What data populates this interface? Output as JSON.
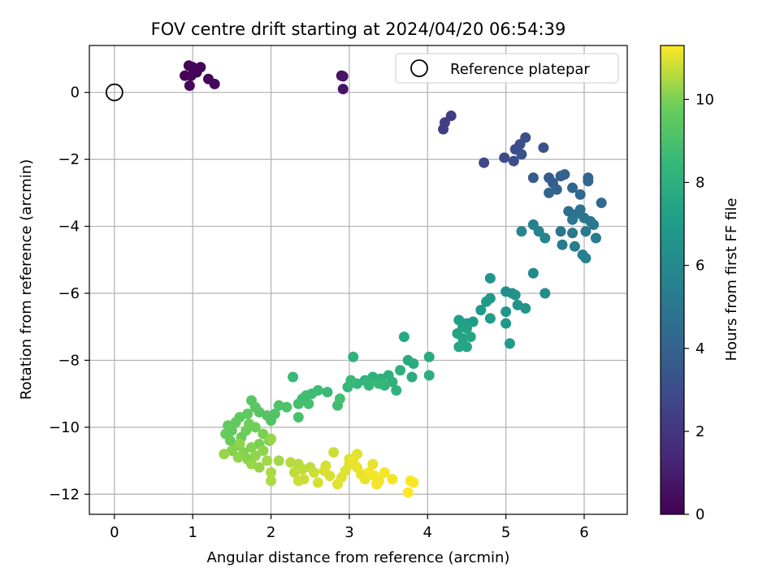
{
  "chart_data": {
    "type": "scatter",
    "title": "FOV centre drift starting at 2024/04/20 06:54:39",
    "xlabel": "Angular distance from reference (arcmin)",
    "ylabel": "Rotation from reference (arcmin)",
    "xlim": [
      -0.32,
      6.55
    ],
    "ylim": [
      -12.6,
      1.4
    ],
    "xticks": [
      0,
      1,
      2,
      3,
      4,
      5,
      6
    ],
    "yticks": [
      -12,
      -10,
      -8,
      -6,
      -4,
      -2,
      0
    ],
    "grid": true,
    "legend": {
      "entries": [
        "Reference platepar"
      ],
      "position": "top-right"
    },
    "reference_point": {
      "x": 0,
      "y": 0
    },
    "colorbar": {
      "label": "Hours from first FF file",
      "colormap": "viridis",
      "range": [
        0,
        11.3
      ],
      "ticks": [
        0,
        2,
        4,
        6,
        8,
        10
      ]
    },
    "series": [
      {
        "values": [
          {
            "x": 0.9,
            "y": 0.5,
            "c": 0.05
          },
          {
            "x": 0.95,
            "y": 0.8,
            "c": 0.05
          },
          {
            "x": 1.0,
            "y": 0.75,
            "c": 0.1
          },
          {
            "x": 1.05,
            "y": 0.6,
            "c": 0.1
          },
          {
            "x": 1.1,
            "y": 0.75,
            "c": 0.15
          },
          {
            "x": 0.98,
            "y": 0.5,
            "c": 0.15
          },
          {
            "x": 0.96,
            "y": 0.2,
            "c": 0.2
          },
          {
            "x": 1.2,
            "y": 0.4,
            "c": 0.2
          },
          {
            "x": 1.28,
            "y": 0.25,
            "c": 0.25
          },
          {
            "x": 2.9,
            "y": 0.5,
            "c": 0.6
          },
          {
            "x": 2.92,
            "y": 0.48,
            "c": 0.65
          },
          {
            "x": 2.92,
            "y": 0.1,
            "c": 0.7
          },
          {
            "x": 4.3,
            "y": -0.7,
            "c": 2.3
          },
          {
            "x": 4.22,
            "y": -0.9,
            "c": 2.35
          },
          {
            "x": 4.2,
            "y": -1.1,
            "c": 2.4
          },
          {
            "x": 4.72,
            "y": -2.1,
            "c": 2.8
          },
          {
            "x": 4.98,
            "y": -1.95,
            "c": 2.9
          },
          {
            "x": 5.1,
            "y": -2.05,
            "c": 3.0
          },
          {
            "x": 5.12,
            "y": -1.7,
            "c": 3.05
          },
          {
            "x": 5.18,
            "y": -1.55,
            "c": 3.1
          },
          {
            "x": 5.25,
            "y": -1.35,
            "c": 3.15
          },
          {
            "x": 5.48,
            "y": -1.65,
            "c": 3.2
          },
          {
            "x": 5.2,
            "y": -1.85,
            "c": 3.25
          },
          {
            "x": 5.35,
            "y": -2.55,
            "c": 3.6
          },
          {
            "x": 5.55,
            "y": -2.55,
            "c": 3.7
          },
          {
            "x": 5.6,
            "y": -2.7,
            "c": 3.8
          },
          {
            "x": 5.7,
            "y": -2.5,
            "c": 3.9
          },
          {
            "x": 5.75,
            "y": -2.45,
            "c": 4.0
          },
          {
            "x": 5.65,
            "y": -2.9,
            "c": 4.0
          },
          {
            "x": 5.55,
            "y": -3.0,
            "c": 4.1
          },
          {
            "x": 5.85,
            "y": -2.85,
            "c": 4.2
          },
          {
            "x": 5.95,
            "y": -3.05,
            "c": 4.3
          },
          {
            "x": 6.05,
            "y": -2.55,
            "c": 4.1
          },
          {
            "x": 6.05,
            "y": -2.65,
            "c": 4.2
          },
          {
            "x": 6.22,
            "y": -3.3,
            "c": 4.4
          },
          {
            "x": 5.8,
            "y": -3.55,
            "c": 4.6
          },
          {
            "x": 5.88,
            "y": -3.65,
            "c": 4.7
          },
          {
            "x": 5.95,
            "y": -3.5,
            "c": 4.8
          },
          {
            "x": 6.0,
            "y": -3.75,
            "c": 4.9
          },
          {
            "x": 6.08,
            "y": -3.85,
            "c": 5.0
          },
          {
            "x": 5.85,
            "y": -3.8,
            "c": 5.0
          },
          {
            "x": 5.7,
            "y": -4.15,
            "c": 5.0
          },
          {
            "x": 5.85,
            "y": -4.2,
            "c": 5.1
          },
          {
            "x": 6.02,
            "y": -4.15,
            "c": 5.2
          },
          {
            "x": 6.12,
            "y": -3.95,
            "c": 5.1
          },
          {
            "x": 6.15,
            "y": -4.35,
            "c": 5.3
          },
          {
            "x": 5.72,
            "y": -4.55,
            "c": 5.3
          },
          {
            "x": 5.88,
            "y": -4.6,
            "c": 5.4
          },
          {
            "x": 5.98,
            "y": -4.85,
            "c": 5.5
          },
          {
            "x": 6.02,
            "y": -4.95,
            "c": 5.6
          },
          {
            "x": 5.35,
            "y": -3.95,
            "c": 5.6
          },
          {
            "x": 5.42,
            "y": -4.15,
            "c": 5.7
          },
          {
            "x": 5.5,
            "y": -4.35,
            "c": 5.8
          },
          {
            "x": 5.2,
            "y": -4.15,
            "c": 5.9
          },
          {
            "x": 5.35,
            "y": -5.4,
            "c": 6.0
          },
          {
            "x": 5.5,
            "y": -6.0,
            "c": 6.2
          },
          {
            "x": 5.0,
            "y": -5.95,
            "c": 6.3
          },
          {
            "x": 5.08,
            "y": -6.0,
            "c": 6.3
          },
          {
            "x": 5.12,
            "y": -6.05,
            "c": 6.4
          },
          {
            "x": 5.15,
            "y": -6.35,
            "c": 6.5
          },
          {
            "x": 5.25,
            "y": -6.45,
            "c": 6.6
          },
          {
            "x": 5.0,
            "y": -6.55,
            "c": 6.6
          },
          {
            "x": 4.8,
            "y": -6.15,
            "c": 6.8
          },
          {
            "x": 4.75,
            "y": -6.25,
            "c": 6.9
          },
          {
            "x": 4.68,
            "y": -6.5,
            "c": 6.9
          },
          {
            "x": 4.8,
            "y": -6.75,
            "c": 7.0
          },
          {
            "x": 4.58,
            "y": -6.85,
            "c": 7.0
          },
          {
            "x": 4.5,
            "y": -6.9,
            "c": 7.1
          },
          {
            "x": 4.8,
            "y": -5.55,
            "c": 6.6
          },
          {
            "x": 5.0,
            "y": -6.9,
            "c": 6.7
          },
          {
            "x": 5.05,
            "y": -7.5,
            "c": 6.9
          },
          {
            "x": 4.4,
            "y": -6.8,
            "c": 7.2
          },
          {
            "x": 4.45,
            "y": -7.0,
            "c": 7.2
          },
          {
            "x": 4.5,
            "y": -7.05,
            "c": 7.3
          },
          {
            "x": 4.38,
            "y": -7.2,
            "c": 7.3
          },
          {
            "x": 4.45,
            "y": -7.35,
            "c": 7.4
          },
          {
            "x": 4.5,
            "y": -7.6,
            "c": 7.4
          },
          {
            "x": 4.4,
            "y": -7.6,
            "c": 7.5
          },
          {
            "x": 4.55,
            "y": -7.3,
            "c": 7.5
          },
          {
            "x": 3.7,
            "y": -7.3,
            "c": 7.6
          },
          {
            "x": 3.75,
            "y": -8.0,
            "c": 7.7
          },
          {
            "x": 3.82,
            "y": -8.1,
            "c": 7.8
          },
          {
            "x": 4.02,
            "y": -7.9,
            "c": 7.8
          },
          {
            "x": 4.02,
            "y": -8.45,
            "c": 7.9
          },
          {
            "x": 3.8,
            "y": -8.5,
            "c": 7.9
          },
          {
            "x": 3.65,
            "y": -8.3,
            "c": 8.0
          },
          {
            "x": 3.5,
            "y": -8.45,
            "c": 8.0
          },
          {
            "x": 3.4,
            "y": -8.55,
            "c": 8.1
          },
          {
            "x": 3.3,
            "y": -8.5,
            "c": 8.1
          },
          {
            "x": 3.55,
            "y": -8.65,
            "c": 8.2
          },
          {
            "x": 3.6,
            "y": -8.9,
            "c": 8.2
          },
          {
            "x": 3.45,
            "y": -8.75,
            "c": 8.3
          },
          {
            "x": 3.2,
            "y": -8.6,
            "c": 8.3
          },
          {
            "x": 3.1,
            "y": -8.7,
            "c": 8.4
          },
          {
            "x": 3.25,
            "y": -8.75,
            "c": 8.4
          },
          {
            "x": 3.38,
            "y": -8.7,
            "c": 8.5
          },
          {
            "x": 3.05,
            "y": -7.9,
            "c": 8.2
          },
          {
            "x": 2.98,
            "y": -8.8,
            "c": 8.5
          },
          {
            "x": 3.02,
            "y": -8.6,
            "c": 8.6
          },
          {
            "x": 2.72,
            "y": -8.95,
            "c": 8.6
          },
          {
            "x": 2.6,
            "y": -8.9,
            "c": 8.7
          },
          {
            "x": 2.52,
            "y": -9.0,
            "c": 8.7
          },
          {
            "x": 2.45,
            "y": -9.05,
            "c": 8.8
          },
          {
            "x": 2.4,
            "y": -9.15,
            "c": 8.8
          },
          {
            "x": 2.35,
            "y": -9.3,
            "c": 8.9
          },
          {
            "x": 2.48,
            "y": -9.3,
            "c": 8.9
          },
          {
            "x": 2.28,
            "y": -8.5,
            "c": 8.6
          },
          {
            "x": 2.85,
            "y": -9.35,
            "c": 8.8
          },
          {
            "x": 2.88,
            "y": -9.15,
            "c": 8.9
          },
          {
            "x": 2.35,
            "y": -9.7,
            "c": 9.0
          },
          {
            "x": 2.2,
            "y": -9.4,
            "c": 9.1
          },
          {
            "x": 2.1,
            "y": -9.35,
            "c": 9.1
          },
          {
            "x": 2.05,
            "y": -9.6,
            "c": 9.2
          },
          {
            "x": 2.0,
            "y": -9.8,
            "c": 9.2
          },
          {
            "x": 1.95,
            "y": -9.65,
            "c": 9.3
          },
          {
            "x": 1.85,
            "y": -9.55,
            "c": 9.3
          },
          {
            "x": 1.75,
            "y": -9.2,
            "c": 9.4
          },
          {
            "x": 1.8,
            "y": -9.4,
            "c": 9.4
          },
          {
            "x": 1.7,
            "y": -9.6,
            "c": 9.5
          },
          {
            "x": 1.6,
            "y": -9.7,
            "c": 9.5
          },
          {
            "x": 1.55,
            "y": -9.85,
            "c": 9.6
          },
          {
            "x": 1.45,
            "y": -9.95,
            "c": 9.6
          },
          {
            "x": 1.5,
            "y": -10.1,
            "c": 9.6
          },
          {
            "x": 1.42,
            "y": -10.2,
            "c": 9.7
          },
          {
            "x": 1.48,
            "y": -10.4,
            "c": 9.7
          },
          {
            "x": 1.55,
            "y": -10.55,
            "c": 9.8
          },
          {
            "x": 1.62,
            "y": -10.3,
            "c": 9.8
          },
          {
            "x": 1.68,
            "y": -10.1,
            "c": 9.8
          },
          {
            "x": 1.72,
            "y": -9.9,
            "c": 9.9
          },
          {
            "x": 1.8,
            "y": -10.0,
            "c": 9.9
          },
          {
            "x": 1.9,
            "y": -10.2,
            "c": 10.0
          },
          {
            "x": 1.98,
            "y": -10.4,
            "c": 10.0
          },
          {
            "x": 1.85,
            "y": -10.5,
            "c": 10.0
          },
          {
            "x": 1.75,
            "y": -10.6,
            "c": 10.1
          },
          {
            "x": 1.65,
            "y": -10.75,
            "c": 10.1
          },
          {
            "x": 1.7,
            "y": -10.95,
            "c": 10.1
          },
          {
            "x": 1.8,
            "y": -10.85,
            "c": 10.2
          },
          {
            "x": 1.9,
            "y": -10.7,
            "c": 10.2
          },
          {
            "x": 1.58,
            "y": -10.9,
            "c": 10.2
          },
          {
            "x": 1.4,
            "y": -10.8,
            "c": 10.3
          },
          {
            "x": 1.75,
            "y": -11.1,
            "c": 10.3
          },
          {
            "x": 1.85,
            "y": -11.2,
            "c": 10.3
          },
          {
            "x": 1.95,
            "y": -11.0,
            "c": 10.4
          },
          {
            "x": 2.1,
            "y": -11.0,
            "c": 10.4
          },
          {
            "x": 2.0,
            "y": -11.35,
            "c": 10.5
          },
          {
            "x": 2.0,
            "y": -11.6,
            "c": 10.5
          },
          {
            "x": 2.0,
            "y": -10.35,
            "c": 10.3
          },
          {
            "x": 1.6,
            "y": -10.5,
            "c": 10.2
          },
          {
            "x": 1.5,
            "y": -10.7,
            "c": 10.1
          },
          {
            "x": 2.25,
            "y": -11.05,
            "c": 10.6
          },
          {
            "x": 2.35,
            "y": -11.1,
            "c": 10.6
          },
          {
            "x": 2.3,
            "y": -11.35,
            "c": 10.7
          },
          {
            "x": 2.4,
            "y": -11.25,
            "c": 10.7
          },
          {
            "x": 2.5,
            "y": -11.2,
            "c": 10.7
          },
          {
            "x": 2.42,
            "y": -11.55,
            "c": 10.8
          },
          {
            "x": 2.35,
            "y": -11.6,
            "c": 10.8
          },
          {
            "x": 2.55,
            "y": -11.35,
            "c": 10.8
          },
          {
            "x": 2.6,
            "y": -11.65,
            "c": 10.9
          },
          {
            "x": 2.68,
            "y": -11.3,
            "c": 10.9
          },
          {
            "x": 2.75,
            "y": -11.45,
            "c": 10.9
          },
          {
            "x": 2.8,
            "y": -10.75,
            "c": 10.8
          },
          {
            "x": 2.85,
            "y": -11.7,
            "c": 11.0
          },
          {
            "x": 2.9,
            "y": -11.5,
            "c": 11.0
          },
          {
            "x": 2.95,
            "y": -11.3,
            "c": 11.0
          },
          {
            "x": 3.0,
            "y": -11.1,
            "c": 11.0
          },
          {
            "x": 3.05,
            "y": -11.0,
            "c": 11.1
          },
          {
            "x": 3.1,
            "y": -11.2,
            "c": 11.1
          },
          {
            "x": 3.15,
            "y": -11.4,
            "c": 11.1
          },
          {
            "x": 3.2,
            "y": -11.55,
            "c": 11.1
          },
          {
            "x": 3.1,
            "y": -10.8,
            "c": 11.0
          },
          {
            "x": 3.25,
            "y": -11.35,
            "c": 11.2
          },
          {
            "x": 3.32,
            "y": -11.45,
            "c": 11.2
          },
          {
            "x": 3.38,
            "y": -11.6,
            "c": 11.2
          },
          {
            "x": 3.45,
            "y": -11.35,
            "c": 11.2
          },
          {
            "x": 3.55,
            "y": -11.55,
            "c": 11.2
          },
          {
            "x": 3.3,
            "y": -11.1,
            "c": 11.1
          },
          {
            "x": 3.78,
            "y": -11.6,
            "c": 11.3
          },
          {
            "x": 3.82,
            "y": -11.65,
            "c": 11.3
          },
          {
            "x": 3.75,
            "y": -11.95,
            "c": 11.3
          },
          {
            "x": 3.35,
            "y": -11.7,
            "c": 11.2
          },
          {
            "x": 3.0,
            "y": -10.95,
            "c": 11.0
          },
          {
            "x": 2.7,
            "y": -11.15,
            "c": 10.9
          }
        ]
      }
    ]
  }
}
